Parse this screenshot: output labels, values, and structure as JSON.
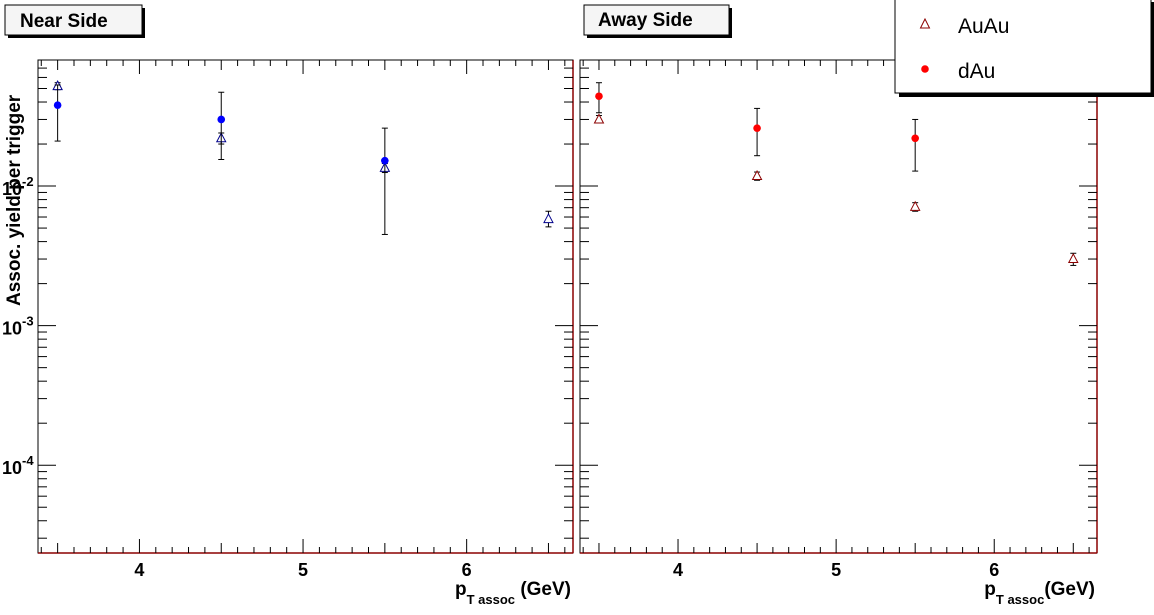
{
  "chart_data": [
    {
      "type": "scatter",
      "title": "Near Side",
      "xlabel": "p_T assoc (GeV)",
      "xlabel_main": "p",
      "xlabel_sub": "T assoc",
      "xlabel_unit": " (GeV)",
      "ylabel": "Assoc. yield per trigger",
      "yscale": "log",
      "xlim": [
        3.38,
        6.65
      ],
      "ylim": [
        2.35e-05,
        0.08
      ],
      "x_ticks": [
        4,
        5,
        6
      ],
      "y_ticks": [
        {
          "base": "10",
          "exp": "-2",
          "value": 0.01
        },
        {
          "base": "10",
          "exp": "-3",
          "value": 0.001
        },
        {
          "base": "10",
          "exp": "-4",
          "value": 0.0001
        }
      ],
      "series": [
        {
          "name": "AuAu",
          "marker": "open-triangle",
          "color": "#00008b",
          "points": [
            {
              "x": 3.5,
              "y": 0.052,
              "ylo": 0.049,
              "yhi": 0.055
            },
            {
              "x": 4.5,
              "y": 0.022,
              "ylo": 0.02,
              "yhi": 0.024
            },
            {
              "x": 5.5,
              "y": 0.0135,
              "ylo": 0.0125,
              "yhi": 0.0145
            },
            {
              "x": 6.5,
              "y": 0.0058,
              "ylo": 0.0051,
              "yhi": 0.0066
            }
          ]
        },
        {
          "name": "dAu",
          "marker": "filled-circle",
          "color": "#0000ff",
          "points": [
            {
              "x": 3.5,
              "y": 0.038,
              "ylo": 0.021,
              "yhi": 0.053
            },
            {
              "x": 4.5,
              "y": 0.03,
              "ylo": 0.0155,
              "yhi": 0.047
            },
            {
              "x": 5.5,
              "y": 0.0152,
              "ylo": 0.0045,
              "yhi": 0.026
            }
          ]
        }
      ]
    },
    {
      "type": "scatter",
      "title": "Away Side",
      "xlabel": "p_T assoc(GeV)",
      "xlabel_main": "p",
      "xlabel_sub": "T assoc",
      "xlabel_unit": "(GeV)",
      "ylabel": "",
      "yscale": "log",
      "xlim": [
        3.38,
        6.65
      ],
      "ylim": [
        2.35e-05,
        0.08
      ],
      "x_ticks": [
        4,
        5,
        6
      ],
      "y_ticks": [],
      "legend": {
        "position": "top-right",
        "entries": [
          "AuAu",
          "dAu"
        ]
      },
      "series": [
        {
          "name": "AuAu",
          "marker": "open-triangle",
          "color": "#8b0000",
          "points": [
            {
              "x": 3.5,
              "y": 0.03,
              "ylo": 0.0285,
              "yhi": 0.032
            },
            {
              "x": 4.5,
              "y": 0.0118,
              "ylo": 0.011,
              "yhi": 0.0126
            },
            {
              "x": 5.5,
              "y": 0.0071,
              "ylo": 0.0066,
              "yhi": 0.0076
            },
            {
              "x": 6.5,
              "y": 0.003,
              "ylo": 0.0027,
              "yhi": 0.0033
            }
          ]
        },
        {
          "name": "dAu",
          "marker": "filled-circle",
          "color": "#ff0000",
          "points": [
            {
              "x": 3.5,
              "y": 0.044,
              "ylo": 0.0335,
              "yhi": 0.055
            },
            {
              "x": 4.5,
              "y": 0.026,
              "ylo": 0.0165,
              "yhi": 0.036
            },
            {
              "x": 5.5,
              "y": 0.022,
              "ylo": 0.0128,
              "yhi": 0.03
            }
          ]
        }
      ]
    }
  ]
}
